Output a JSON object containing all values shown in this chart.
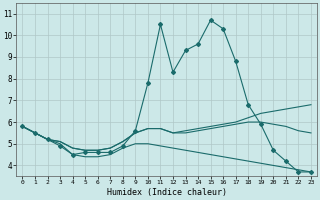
{
  "xlabel": "Humidex (Indice chaleur)",
  "xlim": [
    -0.5,
    23.5
  ],
  "ylim": [
    3.5,
    11.5
  ],
  "xticks": [
    0,
    1,
    2,
    3,
    4,
    5,
    6,
    7,
    8,
    9,
    10,
    11,
    12,
    13,
    14,
    15,
    16,
    17,
    18,
    19,
    20,
    21,
    22,
    23
  ],
  "yticks": [
    4,
    5,
    6,
    7,
    8,
    9,
    10,
    11
  ],
  "background_color": "#cce8e8",
  "grid_color": "#b0c8c8",
  "line_color": "#1a6b6b",
  "hours": [
    0,
    1,
    2,
    3,
    4,
    5,
    6,
    7,
    8,
    9,
    10,
    11,
    12,
    13,
    14,
    15,
    16,
    17,
    18,
    19,
    20,
    21,
    22,
    23
  ],
  "line1": [
    5.8,
    5.5,
    5.2,
    4.9,
    4.5,
    4.6,
    4.6,
    4.6,
    4.9,
    5.6,
    7.8,
    10.5,
    8.3,
    9.3,
    9.6,
    10.7,
    10.3,
    8.8,
    6.8,
    5.9,
    4.7,
    4.2,
    3.7,
    3.7
  ],
  "line2": [
    5.8,
    5.5,
    5.2,
    5.1,
    4.8,
    4.7,
    4.7,
    4.8,
    5.1,
    5.5,
    5.7,
    5.7,
    5.5,
    5.6,
    5.7,
    5.8,
    5.9,
    6.0,
    6.2,
    6.4,
    6.5,
    6.6,
    6.7,
    6.8
  ],
  "line3": [
    5.8,
    5.5,
    5.2,
    5.1,
    4.8,
    4.7,
    4.7,
    4.8,
    5.1,
    5.5,
    5.7,
    5.7,
    5.5,
    5.5,
    5.6,
    5.7,
    5.8,
    5.9,
    6.0,
    6.0,
    5.9,
    5.8,
    5.6,
    5.5
  ],
  "line4": [
    5.8,
    5.5,
    5.2,
    5.0,
    4.5,
    4.4,
    4.4,
    4.5,
    4.8,
    5.0,
    5.0,
    4.9,
    4.8,
    4.7,
    4.6,
    4.5,
    4.4,
    4.3,
    4.2,
    4.1,
    4.0,
    3.9,
    3.8,
    3.7
  ]
}
